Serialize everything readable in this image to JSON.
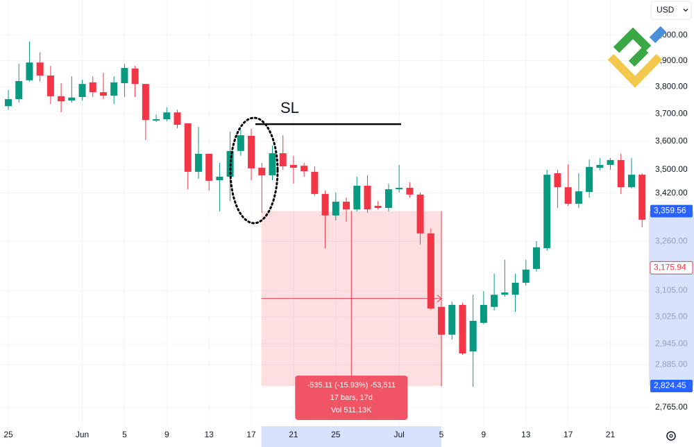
{
  "chart_data": {
    "type": "candlestick",
    "currency": "USD",
    "categories": [
      "25",
      null,
      null,
      null,
      null,
      null,
      null,
      "Jun",
      null,
      null,
      null,
      "5",
      null,
      null,
      null,
      "9",
      null,
      null,
      null,
      "13",
      null,
      null,
      null,
      "17",
      null,
      null,
      null,
      "21",
      null,
      null,
      null,
      "25",
      null,
      null,
      null,
      null,
      null,
      "Jul",
      null,
      null,
      null,
      "5",
      null,
      null,
      null,
      "9",
      null,
      null,
      null,
      "13",
      null,
      null,
      null,
      "17",
      null,
      null,
      null,
      "21",
      null,
      null,
      null
    ],
    "open": [
      3728,
      3754,
      3825,
      3893,
      3843,
      3765,
      3749,
      3762,
      3817,
      3780,
      3767,
      3814,
      3870,
      3811,
      3675,
      3680,
      3705,
      3665,
      3493,
      3556,
      3464,
      3476,
      3566,
      3620,
      3507,
      3481,
      3558,
      3517,
      3514,
      3493,
      3417,
      3345,
      3391,
      3365,
      3445,
      3377,
      3370,
      3433,
      3438,
      3415,
      3286,
      3055,
      2972,
      3061,
      2923,
      3007,
      3055,
      3092,
      3092,
      3129,
      3172,
      3238,
      3488,
      3440,
      3384,
      3424,
      3507,
      3517,
      3534,
      3440,
      3483
    ],
    "high": [
      3788,
      3888,
      3975,
      3933,
      3880,
      3814,
      3840,
      3827,
      3840,
      3853,
      3840,
      3888,
      3880,
      3811,
      3697,
      3723,
      3715,
      3665,
      3652,
      3556,
      3524,
      3635,
      3642,
      3645,
      3524,
      3585,
      3622,
      3549,
      3524,
      3512,
      3429,
      3422,
      3405,
      3476,
      3481,
      3393,
      3452,
      3517,
      3457,
      3422,
      3302,
      3071,
      3071,
      3067,
      3092,
      3103,
      3157,
      3201,
      3157,
      3201,
      3261,
      3500,
      3500,
      3519,
      3488,
      3536,
      3541,
      3541,
      3556,
      3541,
      3488
    ],
    "low": [
      3715,
      3741,
      3820,
      3820,
      3736,
      3705,
      3741,
      3749,
      3762,
      3754,
      3736,
      3762,
      3762,
      3605,
      3670,
      3672,
      3647,
      3433,
      3469,
      3429,
      3358,
      3393,
      3549,
      3464,
      3354,
      3464,
      3500,
      3452,
      3476,
      3412,
      3238,
      3329,
      3324,
      3358,
      3354,
      3365,
      3358,
      3422,
      3405,
      3250,
      3046,
      2824,
      2958,
      2913,
      2822,
      3003,
      3044,
      3086,
      3040,
      3120,
      3164,
      3230,
      3370,
      3377,
      3370,
      3405,
      3498,
      3500,
      3417,
      3436,
      3306
    ],
    "close": [
      3754,
      3822,
      3893,
      3843,
      3765,
      3746,
      3760,
      3811,
      3780,
      3767,
      3817,
      3872,
      3811,
      3677,
      3680,
      3705,
      3660,
      3493,
      3556,
      3462,
      3476,
      3566,
      3622,
      3505,
      3481,
      3558,
      3512,
      3507,
      3495,
      3417,
      3345,
      3391,
      3365,
      3445,
      3365,
      3370,
      3433,
      3438,
      3415,
      3286,
      3050,
      2972,
      3061,
      2917,
      3013,
      3061,
      3092,
      3099,
      3129,
      3170,
      3241,
      3483,
      3440,
      3384,
      3426,
      3510,
      3517,
      3534,
      3440,
      3483,
      3331
    ],
    "up_color": "#089981",
    "down_color": "#f23645",
    "log_scale": true,
    "grid": true,
    "ylim": [
      2714,
      4142
    ],
    "yticks": [
      {
        "value": 4000,
        "label": "4,000.00"
      },
      {
        "value": 3900,
        "label": "3,900.00"
      },
      {
        "value": 3800,
        "label": "3,800.00"
      },
      {
        "value": 3700,
        "label": "3,700.00"
      },
      {
        "value": 3600,
        "label": "3,600.00"
      },
      {
        "value": 3500,
        "label": "3,500.00"
      },
      {
        "value": 3420,
        "label": "3,420.00"
      },
      {
        "value": 3260,
        "label": "3,260.00"
      },
      {
        "value": 3105,
        "label": "3,105.00"
      },
      {
        "value": 3025,
        "label": "3,025.00"
      },
      {
        "value": 2945,
        "label": "2,945.00"
      },
      {
        "value": 2885,
        "label": "2,885.00"
      },
      {
        "value": 2765,
        "label": "2,765.00"
      }
    ],
    "annotations": [
      {
        "text": "SL",
        "value": 3662
      }
    ],
    "price_badges": [
      {
        "value": 3359.56,
        "label": "3,359.56"
      },
      {
        "value": 3175.94,
        "label": "3,175.94"
      },
      {
        "value": 2824.45,
        "label": "2,824.45"
      }
    ],
    "measurement": {
      "from": 3359.56,
      "to": 2824.45,
      "lines": [
        "-535.11 (-15.93%) -53,511",
        "17 bars, 17d",
        "Vol 511.13K"
      ]
    }
  }
}
